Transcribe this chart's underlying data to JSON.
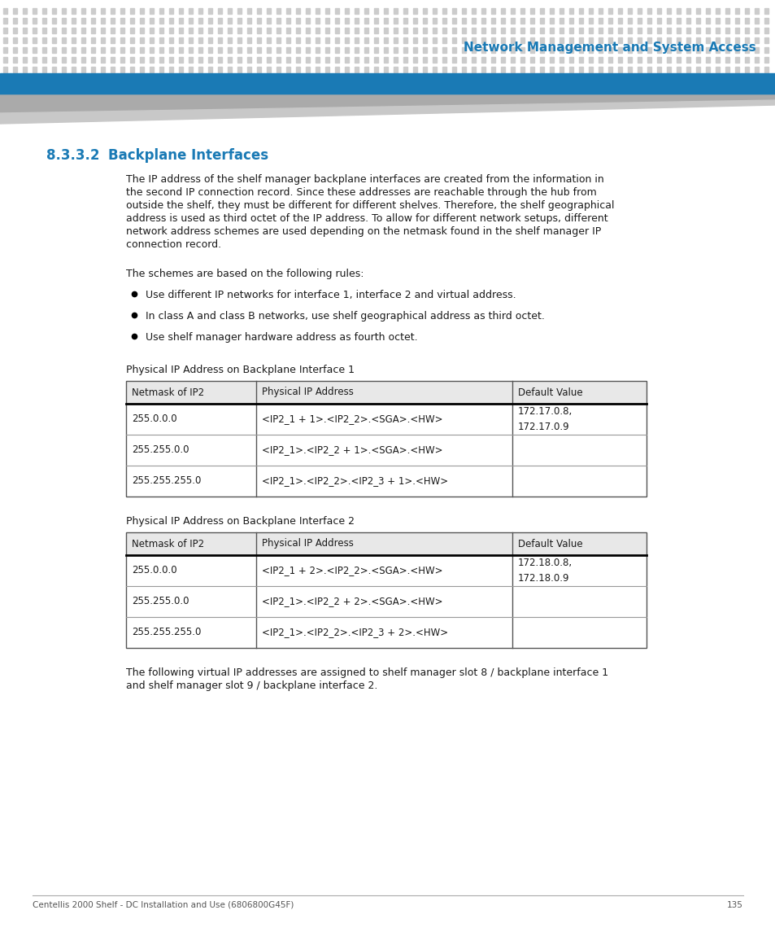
{
  "page_bg": "#ffffff",
  "header_dot_color": "#cccccc",
  "header_bar_color": "#1a7ab5",
  "header_title": "Network Management and System Access",
  "header_title_color": "#1a7ab5",
  "section_number": "8.3.3.2",
  "section_title": "Backplane Interfaces",
  "section_color": "#1a7ab5",
  "body_text_color": "#1a1a1a",
  "paragraph1_lines": [
    "The IP address of the shelf manager backplane interfaces are created from the information in",
    "the second IP connection record. Since these addresses are reachable through the hub from",
    "outside the shelf, they must be different for different shelves. Therefore, the shelf geographical",
    "address is used as third octet of the IP address. To allow for different network setups, different",
    "network address schemes are used depending on the netmask found in the shelf manager IP",
    "connection record."
  ],
  "paragraph2": "The schemes are based on the following rules:",
  "bullets": [
    "Use different IP networks for interface 1, interface 2 and virtual address.",
    "In class A and class B networks, use shelf geographical address as third octet.",
    "Use shelf manager hardware address as fourth octet."
  ],
  "table1_label": "Physical IP Address on Backplane Interface 1",
  "table1_headers": [
    "Netmask of IP2",
    "Physical IP Address",
    "Default Value"
  ],
  "table1_rows": [
    [
      "255.0.0.0",
      "<IP2_1 + 1>.<IP2_2>.<SGA>.<HW>",
      "172.17.0.8,\n172.17.0.9"
    ],
    [
      "255.255.0.0",
      "<IP2_1>.<IP2_2 + 1>.<SGA>.<HW>",
      ""
    ],
    [
      "255.255.255.0",
      "<IP2_1>.<IP2_2>.<IP2_3 + 1>.<HW>",
      ""
    ]
  ],
  "table2_label": "Physical IP Address on Backplane Interface 2",
  "table2_headers": [
    "Netmask of IP2",
    "Physical IP Address",
    "Default Value"
  ],
  "table2_rows": [
    [
      "255.0.0.0",
      "<IP2_1 + 2>.<IP2_2>.<SGA>.<HW>",
      "172.18.0.8,\n172.18.0.9"
    ],
    [
      "255.255.0.0",
      "<IP2_1>.<IP2_2 + 2>.<SGA>.<HW>",
      ""
    ],
    [
      "255.255.255.0",
      "<IP2_1>.<IP2_2>.<IP2_3 + 2>.<HW>",
      ""
    ]
  ],
  "footer_para": "The following virtual IP addresses are assigned to shelf manager slot 8 / backplane interface 1\nand shelf manager slot 9 / backplane interface 2.",
  "footer_text": "Centellis 2000 Shelf - DC Installation and Use (6806800G45F)",
  "footer_page": "135",
  "table_header_bg": "#e8e8e8",
  "table_border_color": "#555555",
  "table_thick_color": "#000000"
}
